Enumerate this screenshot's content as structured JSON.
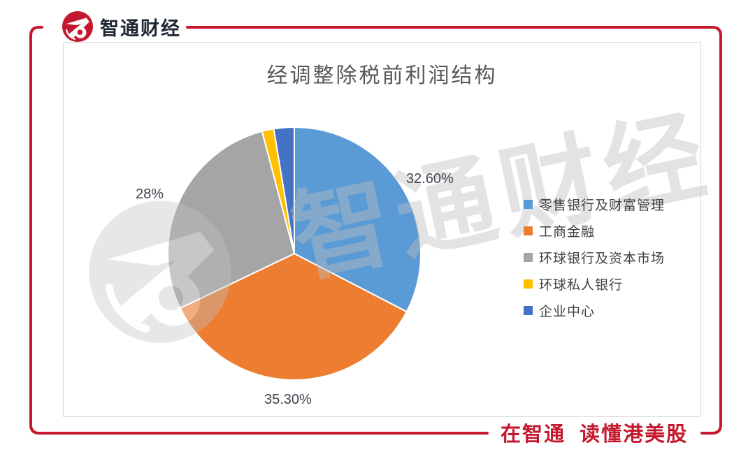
{
  "brand": {
    "name": "智通财经"
  },
  "chart_data": {
    "type": "pie",
    "title": "经调整除税前利润结构",
    "labels": [
      "零售银行及财富管理",
      "工商金融",
      "环球银行及资本市场",
      "环球私人银行",
      "企业中心"
    ],
    "values": [
      32.6,
      35.3,
      28.0,
      1.5,
      2.6
    ],
    "data_labels": [
      "32.60%",
      "35.30%",
      "28%",
      "",
      ""
    ],
    "colors": [
      "#5B9BD5",
      "#ED7D31",
      "#A5A5A5",
      "#FFC000",
      "#4472C4"
    ],
    "start_angle": 0,
    "direction": "clockwise",
    "legend_position": "right",
    "grid": false
  },
  "watermark": {
    "text": "智通财经"
  },
  "footer": {
    "slogan": "在智通  读懂港美股"
  },
  "colors": {
    "accent": "#C5182E",
    "card_border": "#D9D9D9",
    "title_text": "#595959",
    "label_text": "#404040"
  }
}
